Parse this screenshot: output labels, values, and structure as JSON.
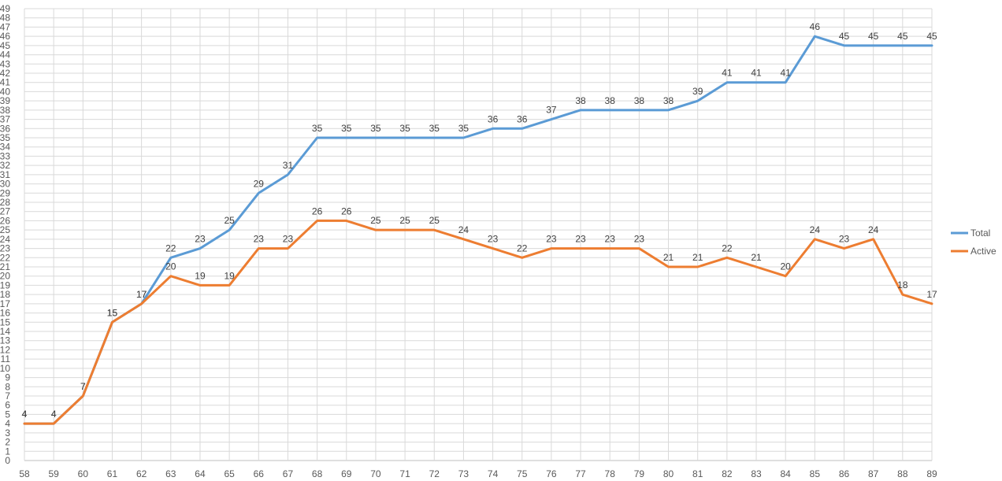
{
  "chart_data": {
    "type": "line",
    "title": "",
    "xlabel": "",
    "ylabel": "",
    "x": [
      58,
      59,
      60,
      61,
      62,
      63,
      64,
      65,
      66,
      67,
      68,
      69,
      70,
      71,
      72,
      73,
      74,
      75,
      76,
      77,
      78,
      79,
      80,
      81,
      82,
      83,
      84,
      85,
      86,
      87,
      88,
      89
    ],
    "ylim": [
      0,
      49
    ],
    "y_tick_step": 1,
    "grid": true,
    "legend_position": "right",
    "series": [
      {
        "name": "Total",
        "color": "#5b9bd5",
        "values": [
          4,
          4,
          7,
          15,
          17,
          22,
          23,
          25,
          29,
          31,
          35,
          35,
          35,
          35,
          35,
          35,
          36,
          36,
          37,
          38,
          38,
          38,
          38,
          39,
          41,
          41,
          41,
          46,
          45,
          45,
          45,
          45
        ]
      },
      {
        "name": "Active",
        "color": "#ed7d31",
        "values": [
          4,
          4,
          7,
          15,
          17,
          20,
          19,
          19,
          23,
          23,
          26,
          26,
          25,
          25,
          25,
          24,
          23,
          22,
          23,
          23,
          23,
          23,
          21,
          21,
          22,
          21,
          20,
          24,
          23,
          24,
          18,
          17
        ]
      }
    ]
  }
}
